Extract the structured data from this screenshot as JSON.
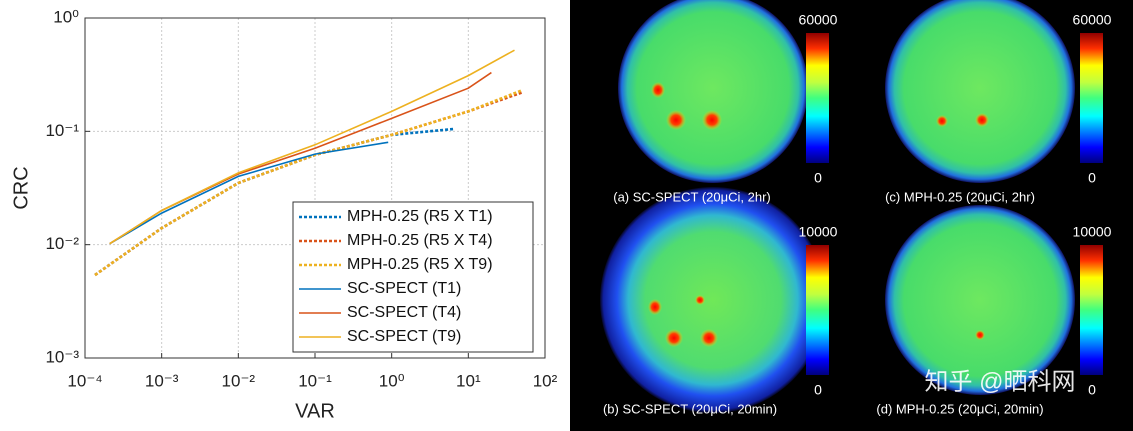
{
  "chart_data": {
    "type": "line",
    "xlabel": "VAR",
    "ylabel": "CRC",
    "log_x": true,
    "log_y": true,
    "grid": true,
    "xlim": [
      0.0001,
      100
    ],
    "ylim": [
      0.001,
      1
    ],
    "xticks": [
      {
        "value": 0.0001,
        "label": "10⁻⁴"
      },
      {
        "value": 0.001,
        "label": "10⁻³"
      },
      {
        "value": 0.01,
        "label": "10⁻²"
      },
      {
        "value": 0.1,
        "label": "10⁻¹"
      },
      {
        "value": 1,
        "label": "10⁰"
      },
      {
        "value": 10,
        "label": "10¹"
      },
      {
        "value": 100,
        "label": "10²"
      }
    ],
    "yticks": [
      {
        "value": 0.001,
        "label": "10⁻³"
      },
      {
        "value": 0.01,
        "label": "10⁻²"
      },
      {
        "value": 0.1,
        "label": "10⁻¹"
      },
      {
        "value": 1,
        "label": "10⁰"
      }
    ],
    "legend": "lower right",
    "series": [
      {
        "name": "MPH-0.25 (R5 X T1)",
        "color": "#0072bd",
        "line_style": "dotted",
        "x": [
          0.000135,
          0.001,
          0.01,
          0.1,
          1,
          6.6
        ],
        "values": [
          0.0054,
          0.014,
          0.035,
          0.062,
          0.093,
          0.105
        ]
      },
      {
        "name": "MPH-0.25 (R5 X T4)",
        "color": "#d95319",
        "line_style": "dotted",
        "x": [
          0.000135,
          0.001,
          0.01,
          0.1,
          1,
          10,
          50
        ],
        "values": [
          0.0054,
          0.014,
          0.035,
          0.062,
          0.093,
          0.15,
          0.22
        ]
      },
      {
        "name": "MPH-0.25 (R5 X T9)",
        "color": "#edb120",
        "line_style": "dotted",
        "x": [
          0.000135,
          0.001,
          0.01,
          0.1,
          1,
          10,
          50
        ],
        "values": [
          0.0054,
          0.014,
          0.035,
          0.062,
          0.093,
          0.15,
          0.23
        ]
      },
      {
        "name": "SC-SPECT (T1)",
        "color": "#0072bd",
        "line_style": "solid",
        "x": [
          0.00021,
          0.001,
          0.01,
          0.1,
          0.9
        ],
        "values": [
          0.0102,
          0.019,
          0.04,
          0.063,
          0.08
        ]
      },
      {
        "name": "SC-SPECT (T4)",
        "color": "#d95319",
        "line_style": "solid",
        "x": [
          0.00021,
          0.001,
          0.01,
          0.1,
          1,
          10,
          20
        ],
        "values": [
          0.0102,
          0.02,
          0.042,
          0.071,
          0.13,
          0.24,
          0.33
        ]
      },
      {
        "name": "SC-SPECT (T9)",
        "color": "#edb120",
        "line_style": "solid",
        "x": [
          0.00021,
          0.001,
          0.01,
          0.1,
          1,
          10,
          40
        ],
        "values": [
          0.0102,
          0.02,
          0.043,
          0.076,
          0.15,
          0.31,
          0.52
        ]
      }
    ]
  },
  "panels": [
    {
      "caption": "(a) SC-SPECT (20μCi, 2hr)",
      "colorbar_max": 60000,
      "colorbar_min": 0
    },
    {
      "caption": "(c) MPH-0.25 (20μCi, 2hr)",
      "colorbar_max": 60000,
      "colorbar_min": 0
    },
    {
      "caption": "(b) SC-SPECT (20μCi, 20min)",
      "colorbar_max": 10000,
      "colorbar_min": 0
    },
    {
      "caption": "(d) MPH-0.25 (20μCi, 20min)",
      "colorbar_max": 10000,
      "colorbar_min": 0
    }
  ],
  "watermark": "知乎 @晒科网"
}
